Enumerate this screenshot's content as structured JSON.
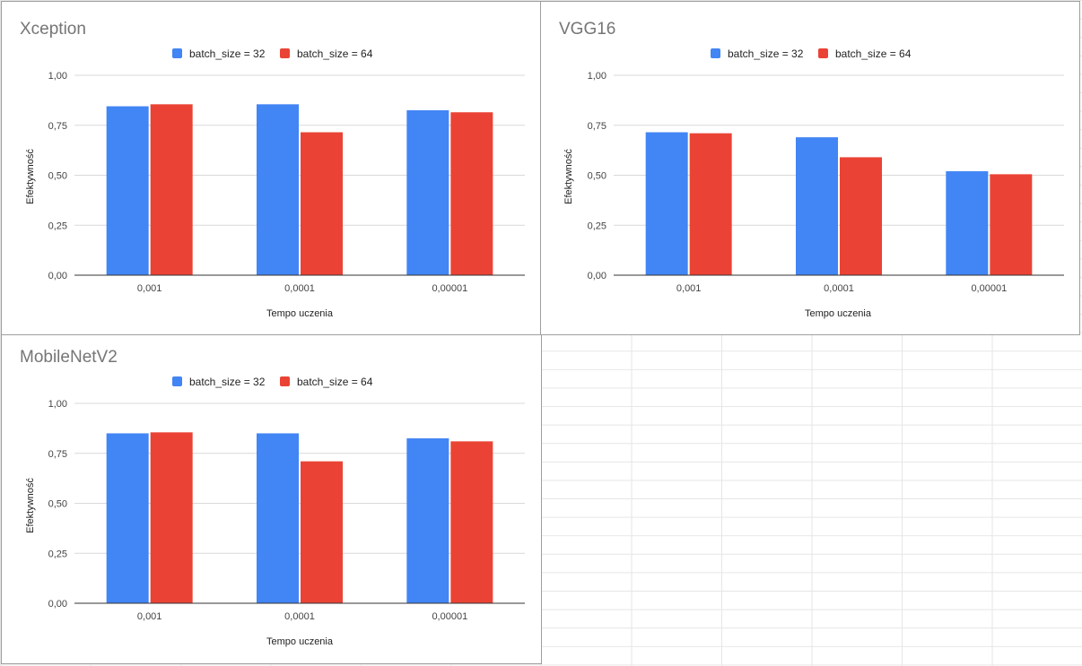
{
  "colors": {
    "series_32": "#4285f4",
    "series_64": "#ea4335",
    "grid": "#d9d9d9",
    "axis": "#333333"
  },
  "chart_data": [
    {
      "type": "bar",
      "title": "Xception",
      "categories": [
        "0,001",
        "0,0001",
        "0,00001"
      ],
      "series": [
        {
          "name": "batch_size = 32",
          "values": [
            0.845,
            0.855,
            0.825
          ]
        },
        {
          "name": "batch_size = 64",
          "values": [
            0.855,
            0.715,
            0.815
          ]
        }
      ],
      "xlabel": "Tempo uczenia",
      "ylabel": "Efektywność",
      "ylim": [
        0,
        1
      ],
      "yticks": [
        "0,00",
        "0,25",
        "0,50",
        "0,75",
        "1,00"
      ],
      "grid": true,
      "legend": "top"
    },
    {
      "type": "bar",
      "title": "VGG16",
      "categories": [
        "0,001",
        "0,0001",
        "0,00001"
      ],
      "series": [
        {
          "name": "batch_size = 32",
          "values": [
            0.715,
            0.69,
            0.52
          ]
        },
        {
          "name": "batch_size = 64",
          "values": [
            0.71,
            0.59,
            0.505
          ]
        }
      ],
      "xlabel": "Tempo uczenia",
      "ylabel": "Efektywność",
      "ylim": [
        0,
        1
      ],
      "yticks": [
        "0,00",
        "0,25",
        "0,50",
        "0,75",
        "1,00"
      ],
      "grid": true,
      "legend": "top"
    },
    {
      "type": "bar",
      "title": "MobileNetV2",
      "categories": [
        "0,001",
        "0,0001",
        "0,00001"
      ],
      "series": [
        {
          "name": "batch_size = 32",
          "values": [
            0.85,
            0.85,
            0.825
          ]
        },
        {
          "name": "batch_size = 64",
          "values": [
            0.855,
            0.71,
            0.81
          ]
        }
      ],
      "xlabel": "Tempo uczenia",
      "ylabel": "Efektywność",
      "ylim": [
        0,
        1
      ],
      "yticks": [
        "0,00",
        "0,25",
        "0,50",
        "0,75",
        "1,00"
      ],
      "grid": true,
      "legend": "top"
    }
  ]
}
